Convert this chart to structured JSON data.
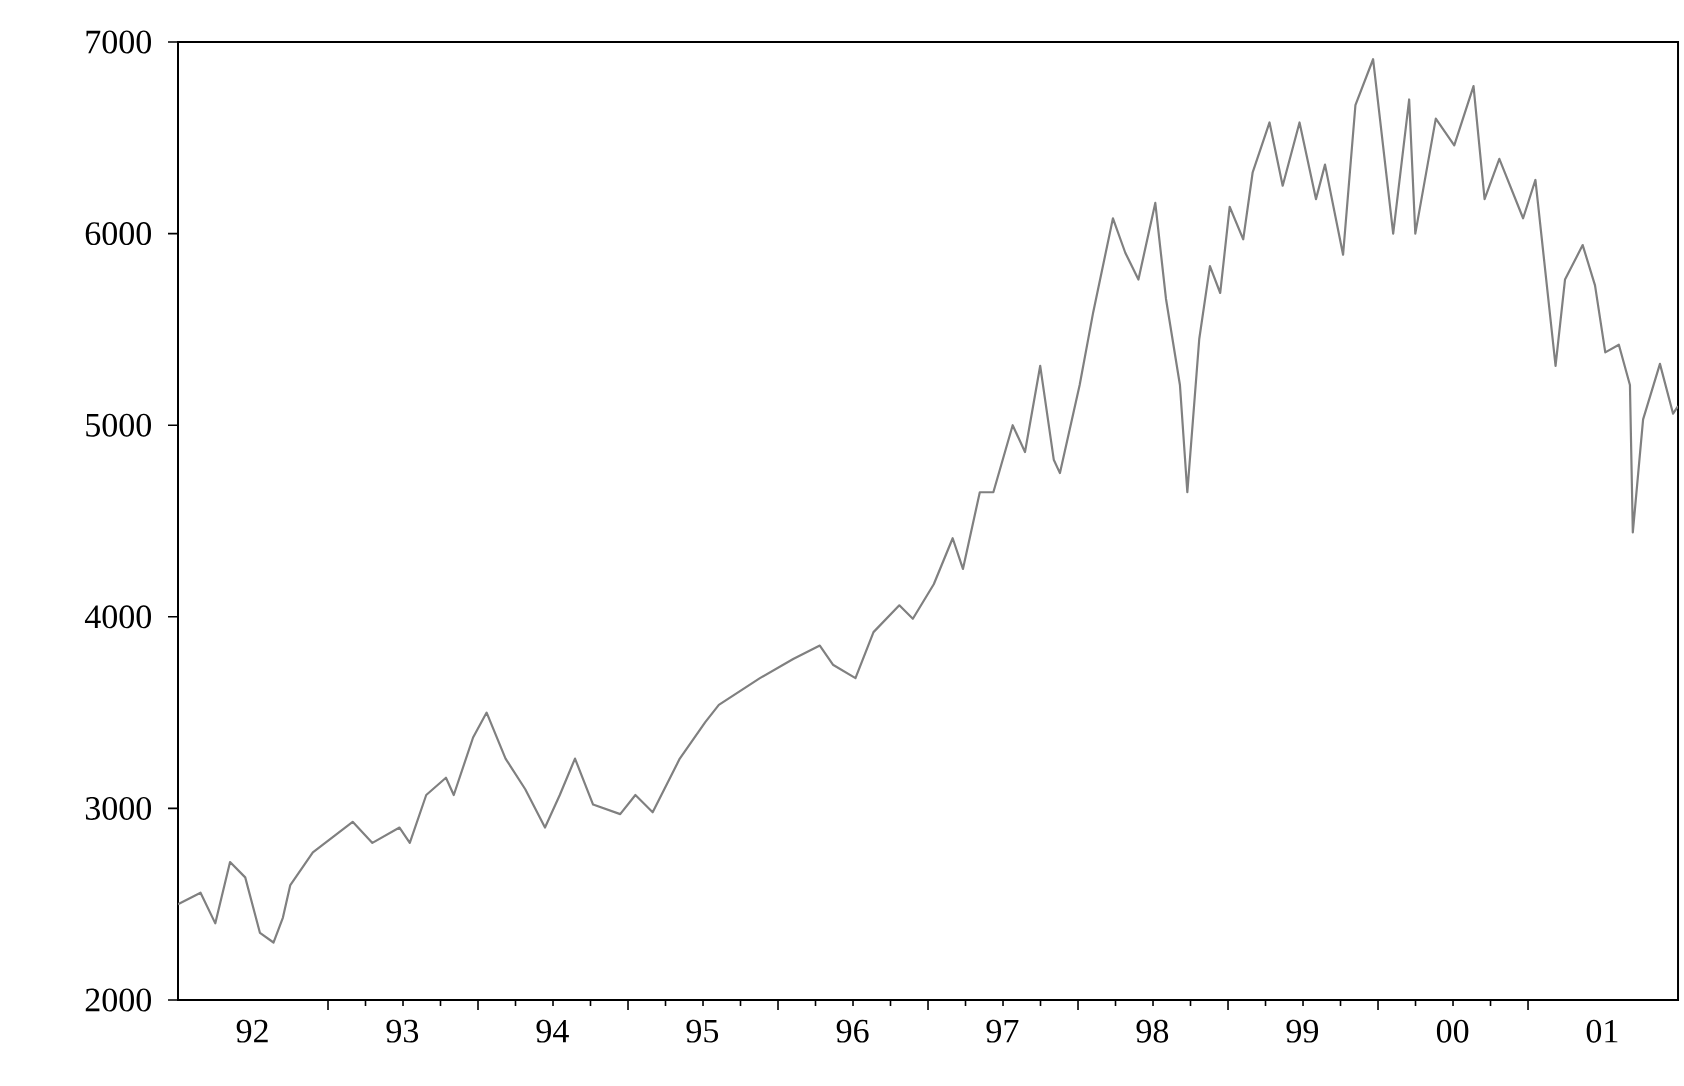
{
  "chart_data": {
    "type": "line",
    "x": [
      "1992-01-01",
      "1992-02-25",
      "1992-04-01",
      "1992-05-07",
      "1992-06-13",
      "1992-07-19",
      "1992-08-21",
      "1992-09-13",
      "1992-10-01",
      "1992-11-25",
      "1993-03-02",
      "1993-04-19",
      "1993-06-24",
      "1993-07-19",
      "1993-08-28",
      "1993-10-15",
      "1993-11-03",
      "1993-12-20",
      "1994-01-22",
      "1994-03-09",
      "1994-04-26",
      "1994-06-13",
      "1994-07-19",
      "1994-08-25",
      "1994-10-08",
      "1994-12-13",
      "1995-01-19",
      "1995-03-02",
      "1995-05-07",
      "1995-07-08",
      "1995-08-10",
      "1995-11-18",
      "1996-02-07",
      "1996-04-12",
      "1996-05-14",
      "1996-07-08",
      "1996-08-21",
      "1996-10-23",
      "1996-11-25",
      "1997-01-15",
      "1997-03-02",
      "1997-03-27",
      "1997-05-07",
      "1997-06-09",
      "1997-07-26",
      "1997-08-25",
      "1997-10-01",
      "1997-11-03",
      "1997-11-18",
      "1998-01-05",
      "1998-02-07",
      "1998-03-27",
      "1998-04-26",
      "1998-05-28",
      "1998-07-08",
      "1998-08-03",
      "1998-09-06",
      "1998-09-24",
      "1998-10-23",
      "1998-11-18",
      "1998-12-13",
      "1999-01-05",
      "1999-02-07",
      "1999-03-02",
      "1999-04-12",
      "1999-05-14",
      "1999-06-24",
      "1999-08-03",
      "1999-08-25",
      "1999-10-08",
      "1999-11-07",
      "1999-12-20",
      "2000-02-07",
      "2000-03-17",
      "2000-04-01",
      "2000-05-21",
      "2000-07-05",
      "2000-08-21",
      "2000-09-17",
      "2000-10-23",
      "2000-12-20",
      "2001-01-19",
      "2001-03-09",
      "2001-04-01",
      "2001-05-14",
      "2001-06-13",
      "2001-07-08",
      "2001-08-10",
      "2001-09-06",
      "2001-09-13",
      "2001-10-08",
      "2001-11-18",
      "2001-12-20",
      "2002-01-01"
    ],
    "series": [
      {
        "color": "#808080",
        "values": [
          2500,
          2560,
          2400,
          2720,
          2640,
          2350,
          2300,
          2430,
          2600,
          2770,
          2930,
          2820,
          2900,
          2820,
          3070,
          3160,
          3070,
          3370,
          3500,
          3260,
          3100,
          2900,
          3070,
          3260,
          3020,
          2970,
          3070,
          2980,
          3260,
          3450,
          3540,
          3680,
          3780,
          3850,
          3750,
          3680,
          3920,
          4060,
          3990,
          4170,
          4410,
          4250,
          4650,
          4650,
          5000,
          4860,
          5310,
          4820,
          4750,
          5210,
          5590,
          6080,
          5900,
          5760,
          6160,
          5660,
          5210,
          4650,
          5450,
          5830,
          5690,
          6140,
          5970,
          6320,
          6580,
          6250,
          6580,
          6180,
          6360,
          5890,
          6670,
          6910,
          6000,
          6700,
          6000,
          6600,
          6460,
          6770,
          6180,
          6390,
          6080,
          6280,
          5310,
          5760,
          5940,
          5730,
          5380,
          5420,
          5210,
          4440,
          5030,
          5320,
          5060,
          5100
        ]
      }
    ],
    "xlim": [
      "1992-01-01",
      "2002-01-01"
    ],
    "ylim": [
      2000,
      7000
    ],
    "yticks": [
      2000,
      3000,
      4000,
      5000,
      6000,
      7000
    ],
    "xticks": [
      {
        "value": "1993-01-01",
        "label": null
      },
      {
        "value": "1994-01-01",
        "label": null
      },
      {
        "value": "1995-01-01",
        "label": null
      },
      {
        "value": "1996-01-01",
        "label": null
      },
      {
        "value": "1997-01-01",
        "label": null
      },
      {
        "value": "1998-01-01",
        "label": null
      },
      {
        "value": "1999-01-01",
        "label": null
      },
      {
        "value": "2000-01-01",
        "label": null
      },
      {
        "value": "2001-01-01",
        "label": null
      },
      {
        "value": "1992-07-01",
        "label": "92"
      },
      {
        "value": "1993-07-01",
        "label": "93"
      },
      {
        "value": "1994-07-01",
        "label": "94"
      },
      {
        "value": "1995-07-01",
        "label": "95"
      },
      {
        "value": "1996-07-01",
        "label": "96"
      },
      {
        "value": "1997-07-01",
        "label": "97"
      },
      {
        "value": "1998-07-01",
        "label": "98"
      },
      {
        "value": "1999-07-01",
        "label": "99"
      },
      {
        "value": "2000-07-01",
        "label": "00"
      },
      {
        "value": "2001-07-01",
        "label": "01"
      }
    ]
  }
}
